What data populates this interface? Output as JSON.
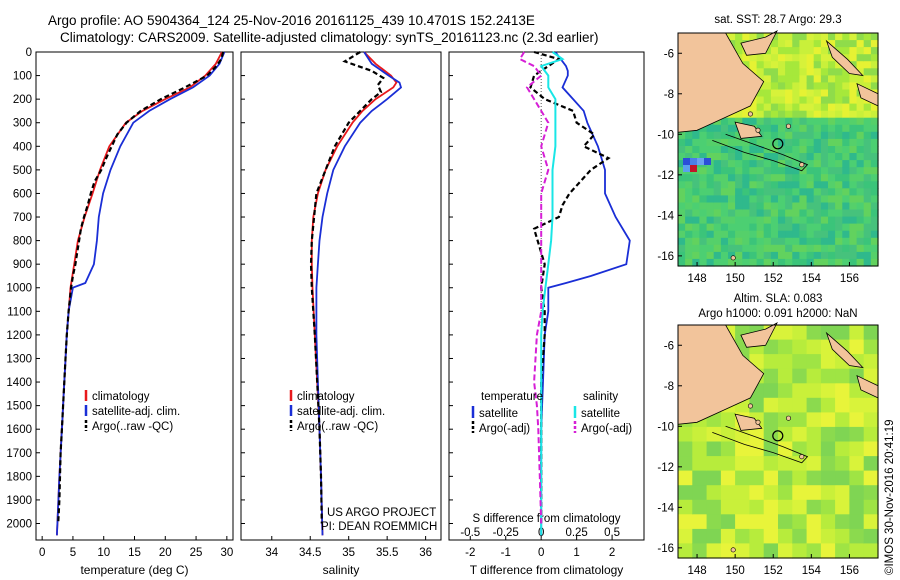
{
  "title_line1": "Argo profile: AO 5904364_124 25-Nov-2016 20161125_439 10.4701S 152.2413E",
  "title_line2": "Climatology: CARS2009. Satellite-adjusted climatology: synTS_20161123.nc (2.3d earlier)",
  "footer_credit": "©IMOS 30-Nov-2016 20:41:19",
  "colors": {
    "climatology": "#e8191c",
    "satellite": "#1a2ed6",
    "argo": "#000000",
    "sat_salinity": "#19e6e6",
    "argo_salinity": "#d61fd6",
    "land": "#f2c49b"
  },
  "chart_data": [
    {
      "type": "line",
      "id": "temperature",
      "xlabel": "temperature (deg C)",
      "ylabel": "",
      "xlim": [
        -1,
        31
      ],
      "ylim": [
        2070,
        0
      ],
      "xticks": [
        "0",
        "5",
        "10",
        "15",
        "20",
        "25",
        "30"
      ],
      "xtick_values": [
        0,
        5,
        10,
        15,
        20,
        25,
        30
      ],
      "yticks": [
        "0",
        "100",
        "200",
        "300",
        "400",
        "500",
        "600",
        "700",
        "800",
        "900",
        "1000",
        "1100",
        "1200",
        "1300",
        "1400",
        "1500",
        "1600",
        "1700",
        "1800",
        "1900",
        "2000"
      ],
      "ytick_values": [
        0,
        100,
        200,
        300,
        400,
        500,
        600,
        700,
        800,
        900,
        1000,
        1100,
        1200,
        1300,
        1400,
        1500,
        1600,
        1700,
        1800,
        1900,
        2000
      ],
      "legend": [
        "climatology",
        "satellite-adj. clim.",
        "Argo(..raw -QC)"
      ],
      "series": [
        {
          "name": "climatology",
          "depth": [
            0,
            50,
            100,
            150,
            200,
            250,
            300,
            400,
            500,
            600,
            700,
            800,
            900,
            1000,
            1200,
            1400,
            1600,
            1800,
            2050
          ],
          "values": [
            29.2,
            28.2,
            26.5,
            24.0,
            20.0,
            16.3,
            13.6,
            10.9,
            9.4,
            8.2,
            6.9,
            5.8,
            5.2,
            4.6,
            4.0,
            3.6,
            3.2,
            2.8,
            2.4
          ]
        },
        {
          "name": "satellite-adj. clim.",
          "depth": [
            0,
            50,
            100,
            150,
            200,
            250,
            300,
            400,
            500,
            600,
            700,
            800,
            900,
            980,
            1000,
            1100,
            1200,
            1400,
            1600,
            1800,
            2050
          ],
          "values": [
            29.6,
            28.8,
            27.2,
            24.5,
            20.8,
            17.4,
            14.8,
            12.7,
            11.1,
            9.9,
            9.2,
            8.9,
            8.4,
            7.0,
            5.0,
            4.3,
            4.0,
            3.6,
            3.2,
            2.8,
            2.4
          ]
        },
        {
          "name": "Argo(..raw -QC)",
          "depth": [
            0,
            30,
            60,
            100,
            150,
            200,
            250,
            300,
            350,
            400,
            450,
            500,
            550,
            600,
            650,
            700,
            750,
            800,
            850,
            900,
            950,
            1000,
            1100,
            1200,
            1300,
            1400,
            1500,
            1600,
            1700,
            1800,
            1900,
            2000
          ],
          "values": [
            29.4,
            29.1,
            28.3,
            26.8,
            23.2,
            19.3,
            16.0,
            13.7,
            12.2,
            11.3,
            10.4,
            9.6,
            8.5,
            7.9,
            7.4,
            6.8,
            6.3,
            6.0,
            5.7,
            5.4,
            5.0,
            4.7,
            4.3,
            4.0,
            3.8,
            3.6,
            3.4,
            3.2,
            3.0,
            2.9,
            2.8,
            2.6
          ]
        }
      ]
    },
    {
      "type": "line",
      "id": "salinity",
      "xlabel": "salinity",
      "xlim": [
        33.6,
        36.2
      ],
      "ylim": [
        2070,
        0
      ],
      "xticks": [
        "34",
        "34.5",
        "35",
        "35.5",
        "36"
      ],
      "xtick_values": [
        34,
        34.5,
        35,
        35.5,
        36
      ],
      "legend": [
        "climatology",
        "satellite-adj. clim.",
        "Argo(..raw -QC)"
      ],
      "annotation": [
        "US ARGO PROJECT",
        "PI: DEAN ROEMMICH"
      ],
      "series": [
        {
          "name": "climatology",
          "depth": [
            0,
            50,
            100,
            130,
            150,
            200,
            250,
            300,
            400,
            500,
            600,
            700,
            800,
            900,
            1000,
            1200,
            1400,
            1600,
            1800,
            2050
          ],
          "values": [
            35.2,
            35.35,
            35.55,
            35.62,
            35.58,
            35.35,
            35.18,
            35.05,
            34.85,
            34.7,
            34.6,
            34.54,
            34.52,
            34.52,
            34.53,
            34.56,
            34.59,
            34.62,
            34.64,
            34.66
          ]
        },
        {
          "name": "satellite-adj. clim.",
          "depth": [
            0,
            50,
            100,
            130,
            150,
            200,
            250,
            300,
            400,
            500,
            600,
            700,
            800,
            900,
            1000,
            1200,
            1400,
            1600,
            1800,
            2050
          ],
          "values": [
            35.2,
            35.3,
            35.52,
            35.66,
            35.68,
            35.5,
            35.3,
            35.15,
            34.95,
            34.8,
            34.72,
            34.66,
            34.62,
            34.6,
            34.58,
            34.58,
            34.6,
            34.62,
            34.64,
            34.66
          ]
        },
        {
          "name": "Argo(..raw -QC)",
          "depth": [
            0,
            40,
            80,
            110,
            140,
            170,
            200,
            250,
            300,
            400,
            500,
            600,
            700,
            800,
            900,
            1000,
            1100,
            1200,
            1400,
            1600,
            1800,
            2000
          ],
          "values": [
            35.15,
            34.95,
            35.3,
            35.45,
            35.38,
            35.42,
            35.3,
            35.15,
            35.0,
            34.82,
            34.7,
            34.58,
            34.55,
            34.52,
            34.51,
            34.52,
            34.54,
            34.56,
            34.59,
            34.62,
            34.64,
            34.65
          ]
        }
      ]
    },
    {
      "type": "line",
      "id": "difference",
      "xlabel": "T difference from climatology",
      "x2label": "S difference from climatology",
      "xlim": [
        -2.6,
        2.9
      ],
      "ylim": [
        2070,
        0
      ],
      "xticks": [
        "-2",
        "-1",
        "0",
        "1",
        "2"
      ],
      "xtick_values": [
        -2,
        -1,
        0,
        1,
        2
      ],
      "x2ticks": [
        "-0.5",
        "-0.25",
        "0",
        "0.25",
        "0.5"
      ],
      "legend_headers": [
        "temperature",
        "salinity"
      ],
      "legend": [
        "satellite",
        "Argo(-adj)",
        "satellite",
        "Argo(-adj)"
      ],
      "series": [
        {
          "name": "T satellite",
          "depth": [
            0,
            20,
            40,
            60,
            80,
            100,
            150,
            200,
            250,
            300,
            400,
            500,
            600,
            700,
            800,
            900,
            950,
            980,
            1000,
            1100,
            1200,
            1400,
            1600,
            1800,
            2050
          ],
          "values": [
            0.4,
            0.5,
            0.6,
            0.7,
            0.75,
            0.75,
            0.6,
            0.9,
            1.2,
            1.3,
            1.6,
            1.8,
            1.8,
            2.1,
            2.5,
            2.4,
            1.4,
            0.7,
            0.2,
            0.2,
            0.1,
            0.05,
            0,
            0,
            0
          ]
        },
        {
          "name": "T Argo(-adj)",
          "depth": [
            0,
            30,
            60,
            100,
            150,
            200,
            250,
            300,
            350,
            400,
            450,
            500,
            550,
            600,
            650,
            700,
            750,
            800,
            900,
            1000,
            1100,
            1200,
            1400,
            1600,
            1800,
            2000
          ],
          "values": [
            -0.2,
            0.5,
            0.2,
            -0.2,
            -0.3,
            0.1,
            0.9,
            1.0,
            1.5,
            1.2,
            1.9,
            1.4,
            1.1,
            0.8,
            0.6,
            0.5,
            -0.2,
            -0.1,
            0.1,
            0.0,
            0.1,
            0.1,
            0.0,
            0.0,
            0.0,
            0.0
          ]
        },
        {
          "name": "S satellite",
          "depth": [
            0,
            30,
            60,
            100,
            150,
            200,
            300,
            400,
            500,
            600,
            700,
            800,
            900,
            1000,
            1100,
            1200,
            1400,
            1600,
            1800,
            2050
          ],
          "values": [
            0.08,
            0.15,
            0.0,
            0.05,
            0.05,
            0.1,
            0.1,
            0.1,
            0.08,
            0.08,
            0.08,
            0.07,
            0.05,
            0.03,
            0.01,
            0.0,
            0.0,
            0.0,
            0.0,
            0.0
          ]
        },
        {
          "name": "S Argo(-adj)",
          "depth": [
            0,
            30,
            60,
            100,
            150,
            200,
            250,
            300,
            400,
            500,
            600,
            700,
            800,
            900,
            1000,
            1100,
            1200,
            1300,
            1400,
            1500,
            1600,
            1800,
            2000
          ],
          "values": [
            -0.12,
            -0.15,
            -0.05,
            0.0,
            -0.1,
            -0.05,
            0.0,
            0.05,
            0.0,
            0.05,
            0.0,
            0.0,
            0.0,
            0.0,
            0.0,
            0.0,
            -0.03,
            -0.04,
            -0.05,
            -0.03,
            -0.02,
            -0.01,
            0.0
          ]
        }
      ]
    },
    {
      "type": "heatmap",
      "id": "sst_map",
      "title": "sat. SST: 28.7 Argo: 29.3",
      "xticks": [
        "148",
        "150",
        "152",
        "154",
        "156"
      ],
      "yticks": [
        "-6",
        "-8",
        "-10",
        "-12",
        "-14",
        "-16"
      ],
      "xlim": [
        147,
        157.5
      ],
      "ylim": [
        -16.5,
        -5.0
      ],
      "argo_location": [
        152.24,
        -10.47
      ],
      "annotation": "Altim. SLA: 0.083"
    },
    {
      "type": "heatmap",
      "id": "sla_map",
      "title": "Argo h1000: 0.091 h2000: NaN",
      "xticks": [
        "148",
        "150",
        "152",
        "154",
        "156"
      ],
      "yticks": [
        "-6",
        "-8",
        "-10",
        "-12",
        "-14",
        "-16"
      ],
      "xlim": [
        147,
        157.5
      ],
      "ylim": [
        -16.5,
        -5.0
      ],
      "argo_location": [
        152.24,
        -10.47
      ]
    }
  ]
}
